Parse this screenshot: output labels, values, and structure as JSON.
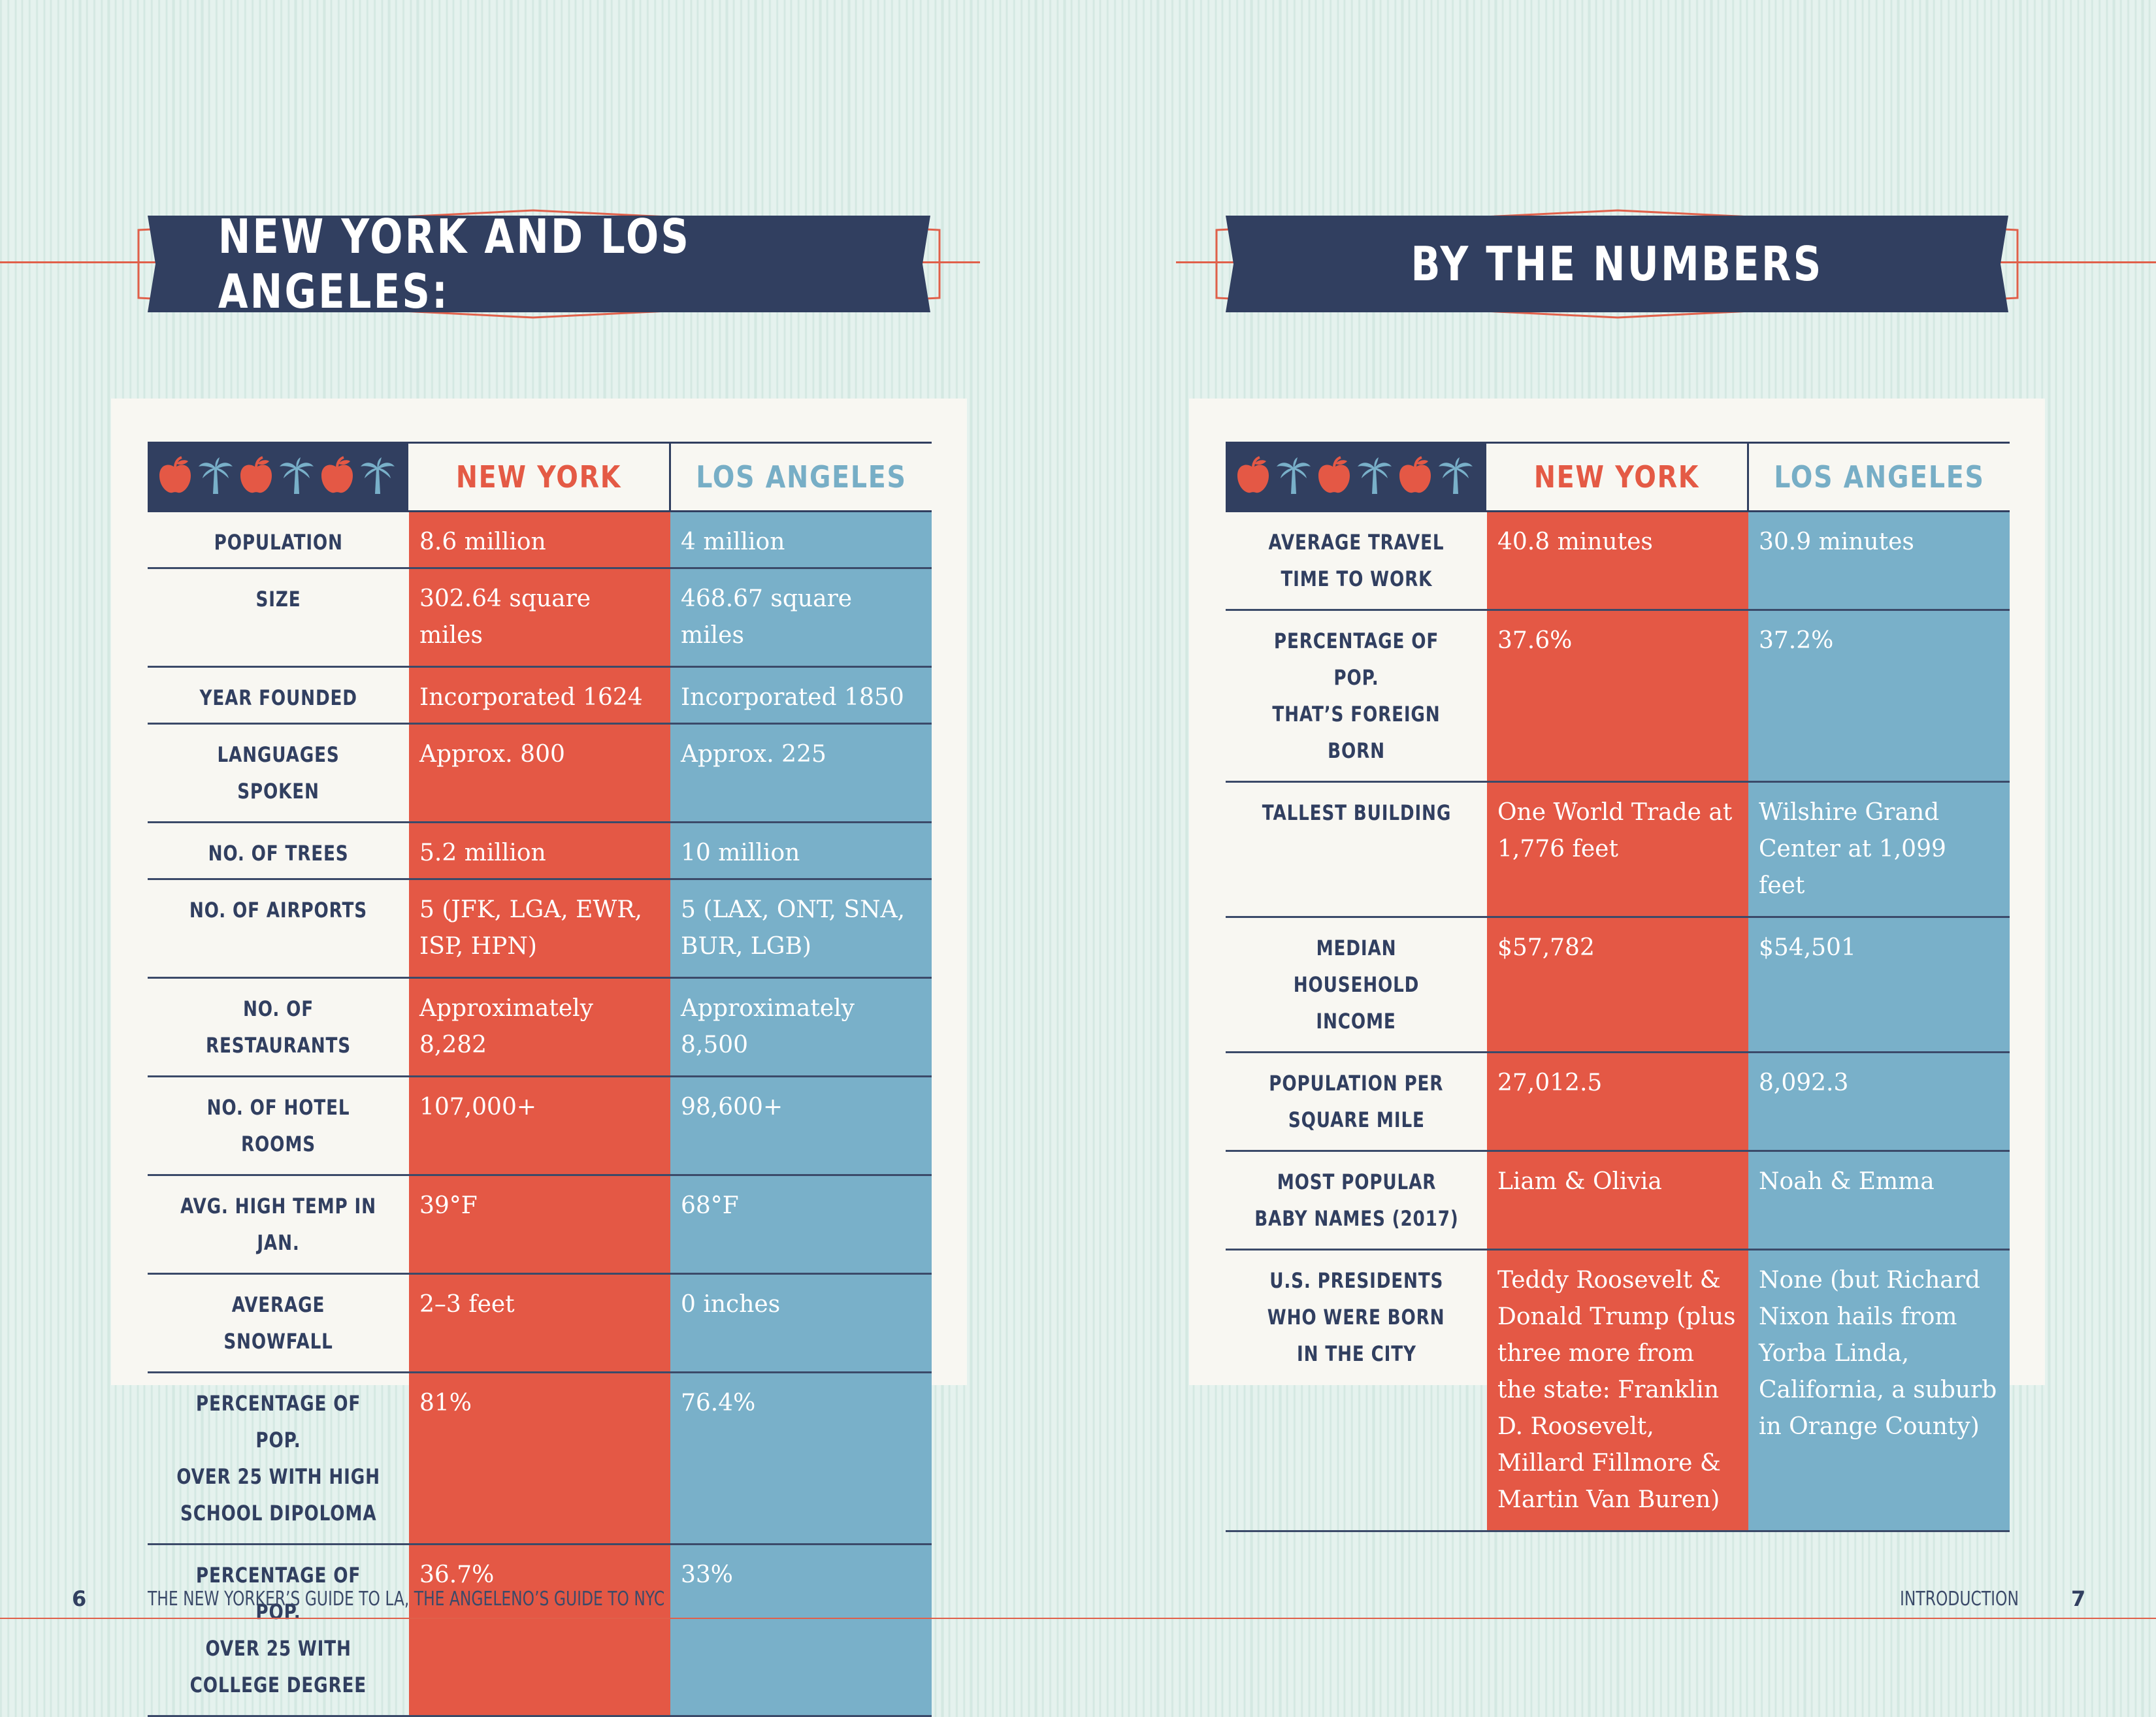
{
  "spread": {
    "left_banner_title": "NEW YORK AND LOS ANGELES:",
    "right_banner_title": "BY THE NUMBERS"
  },
  "table_header": {
    "col_ny": "NEW YORK",
    "col_la": "LOS ANGELES",
    "icons": [
      "apple-icon",
      "palm-tree-icon",
      "apple-icon",
      "palm-tree-icon",
      "apple-icon",
      "palm-tree-icon"
    ]
  },
  "left_table": {
    "rows": [
      {
        "label": [
          "POPULATION"
        ],
        "ny": "8.6 million",
        "la": "4 million"
      },
      {
        "label": [
          "SIZE"
        ],
        "ny": "302.64 square miles",
        "la": "468.67 square miles"
      },
      {
        "label": [
          "YEAR FOUNDED"
        ],
        "ny": "Incorporated 1624",
        "la": "Incorporated 1850"
      },
      {
        "label": [
          "LANGUAGES SPOKEN"
        ],
        "ny": "Approx. 800",
        "la": "Approx. 225"
      },
      {
        "label": [
          "NO. OF TREES"
        ],
        "ny": "5.2 million",
        "la": "10 million"
      },
      {
        "label": [
          "NO. OF AIRPORTS"
        ],
        "ny": "5 (JFK, LGA, EWR, ISP, HPN)",
        "la": "5 (LAX, ONT, SNA, BUR, LGB)"
      },
      {
        "label": [
          "NO. OF RESTAURANTS"
        ],
        "ny": "Approximately 8,282",
        "la": "Approximately 8,500"
      },
      {
        "label": [
          "NO. OF HOTEL ROOMS"
        ],
        "ny": "107,000+",
        "la": "98,600+"
      },
      {
        "label": [
          "AVG. HIGH TEMP IN JAN."
        ],
        "ny": "39°F",
        "la": "68°F"
      },
      {
        "label": [
          "AVERAGE SNOWFALL"
        ],
        "ny": "2–3 feet",
        "la": "0 inches"
      },
      {
        "label": [
          "PERCENTAGE OF POP.",
          "OVER 25 WITH HIGH",
          "SCHOOL DIPOLOMA"
        ],
        "ny": "81%",
        "la": "76.4%"
      },
      {
        "label": [
          "PERCENTAGE OF POP.",
          "OVER 25 WITH",
          "COLLEGE DEGREE"
        ],
        "ny": "36.7%",
        "la": "33%"
      }
    ]
  },
  "right_table": {
    "rows": [
      {
        "label": [
          "AVERAGE TRAVEL",
          "TIME TO WORK"
        ],
        "ny": "40.8 minutes",
        "la": "30.9 minutes"
      },
      {
        "label": [
          "PERCENTAGE OF POP.",
          "THAT’S FOREIGN BORN"
        ],
        "ny": "37.6%",
        "la": "37.2%"
      },
      {
        "label": [
          "TALLEST BUILDING"
        ],
        "ny": "One World Trade at 1,776 feet",
        "la": "Wilshire Grand Center at 1,099 feet"
      },
      {
        "label": [
          "MEDIAN HOUSEHOLD",
          "INCOME"
        ],
        "ny": "$57,782",
        "la": "$54,501"
      },
      {
        "label": [
          "POPULATION PER",
          "SQUARE MILE"
        ],
        "ny": "27,012.5",
        "la": "8,092.3"
      },
      {
        "label": [
          "MOST POPULAR",
          "BABY NAMES (2017)"
        ],
        "ny": "Liam & Olivia",
        "la": "Noah & Emma"
      },
      {
        "label": [
          "U.S. PRESIDENTS",
          "WHO WERE BORN",
          "IN THE CITY"
        ],
        "ny": "Teddy Roosevelt & Donald Trump (plus three more from the state: Franklin D. Roosevelt, Millard Fillmore & Martin Van Buren)",
        "la": "None (but Richard Nixon hails from Yorba Linda, California, a suburb in Orange County)"
      }
    ]
  },
  "footer": {
    "left_page_number": "6",
    "left_running_head": "THE NEW YORKER’S GUIDE TO LA, THE ANGELENO’S GUIDE TO NYC",
    "right_running_head": "INTRODUCTION",
    "right_page_number": "7"
  },
  "colors": {
    "navy": "#313f60",
    "new_york_red": "#e45845",
    "los_angeles_blue": "#79b0c9",
    "accent_line": "#e0604a"
  }
}
